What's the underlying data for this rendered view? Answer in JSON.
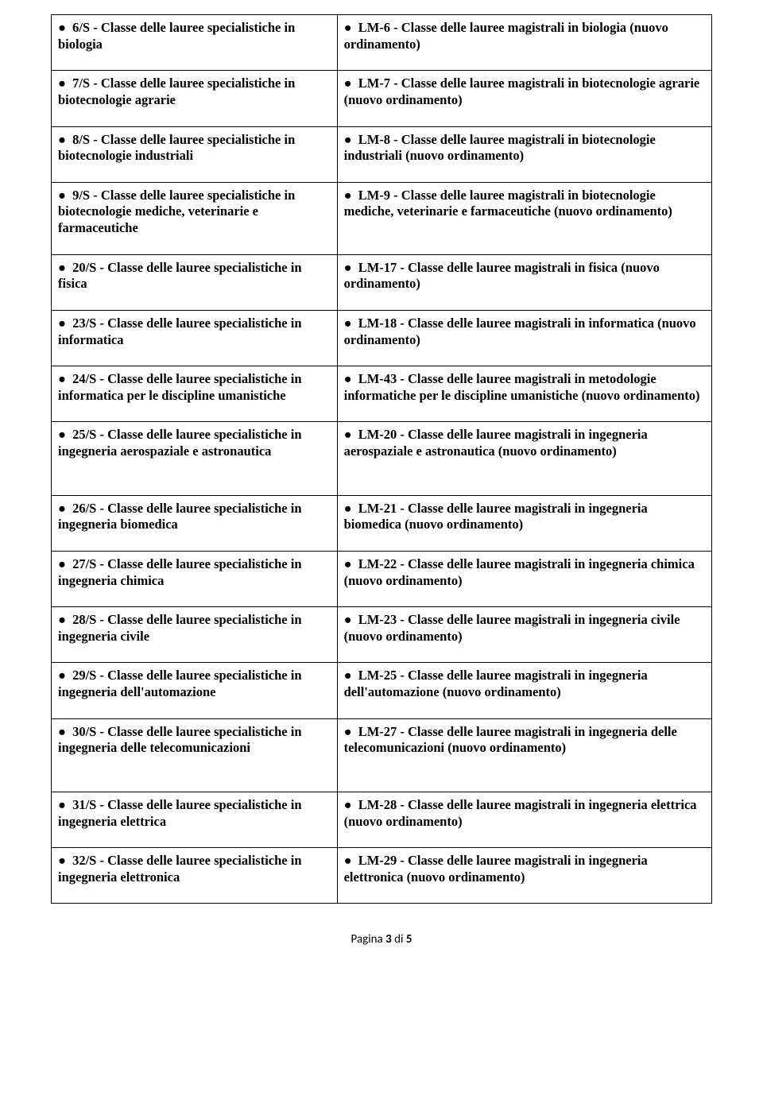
{
  "bullet": "●",
  "rows": [
    {
      "left": "6/S - Classe delle lauree specialistiche in biologia",
      "right": "LM-6 - Classe delle lauree magistrali in biologia (nuovo ordinamento)"
    },
    {
      "left": "7/S - Classe delle lauree specialistiche in biotecnologie agrarie",
      "right": "LM-7 - Classe delle lauree magistrali in biotecnologie agrarie (nuovo ordinamento)"
    },
    {
      "left": "8/S - Classe delle lauree specialistiche in biotecnologie industriali",
      "right": "LM-8 - Classe delle lauree magistrali in biotecnologie industriali (nuovo ordinamento)"
    },
    {
      "left": "9/S - Classe delle lauree specialistiche in biotecnologie mediche, veterinarie e farmaceutiche",
      "right": "LM-9 - Classe delle lauree magistrali in biotecnologie mediche, veterinarie e farmaceutiche (nuovo ordinamento)"
    },
    {
      "left": "20/S - Classe delle lauree specialistiche in fisica",
      "right": "LM-17 - Classe delle lauree magistrali in fisica (nuovo ordinamento)"
    },
    {
      "left": "23/S - Classe delle lauree specialistiche in informatica",
      "right": "LM-18 - Classe delle lauree magistrali in informatica (nuovo ordinamento)"
    },
    {
      "left": "24/S - Classe delle lauree specialistiche in informatica per le discipline umanistiche",
      "right": "LM-43 - Classe delle lauree magistrali in metodologie informatiche per le discipline umanistiche (nuovo ordinamento)"
    },
    {
      "left": "25/S - Classe delle lauree specialistiche in ingegneria aerospaziale e astronautica",
      "right": "LM-20 - Classe delle lauree magistrali in ingegneria aerospaziale e astronautica (nuovo ordinamento)",
      "extraPad": true
    },
    {
      "left": "26/S - Classe delle lauree specialistiche in ingegneria biomedica",
      "right": "LM-21 - Classe delle lauree magistrali in ingegneria biomedica (nuovo ordinamento)"
    },
    {
      "left": "27/S - Classe delle lauree specialistiche in ingegneria chimica",
      "right": "LM-22 - Classe delle lauree magistrali in ingegneria chimica (nuovo ordinamento)"
    },
    {
      "left": "28/S - Classe delle lauree specialistiche in ingegneria civile",
      "right": "LM-23 - Classe delle lauree magistrali in ingegneria civile (nuovo ordinamento)"
    },
    {
      "left": "29/S - Classe delle lauree specialistiche in ingegneria dell'automazione",
      "right": "LM-25 - Classe delle lauree magistrali in ingegneria dell'automazione (nuovo ordinamento)"
    },
    {
      "left": "30/S - Classe delle lauree specialistiche in ingegneria delle telecomunicazioni",
      "right": "LM-27 - Classe delle lauree magistrali in ingegneria delle telecomunicazioni (nuovo ordinamento)",
      "extraPad": true
    },
    {
      "left": "31/S - Classe delle lauree specialistiche in ingegneria elettrica",
      "right": "LM-28 - Classe delle lauree magistrali in ingegneria elettrica (nuovo ordinamento)"
    },
    {
      "left": "32/S - Classe delle lauree specialistiche in ingegneria elettronica",
      "right": "LM-29 - Classe delle lauree magistrali in ingegneria elettronica (nuovo ordinamento)"
    }
  ],
  "footer": {
    "prefix": "Pagina ",
    "current": "3",
    "sep": " di ",
    "total": "5"
  }
}
